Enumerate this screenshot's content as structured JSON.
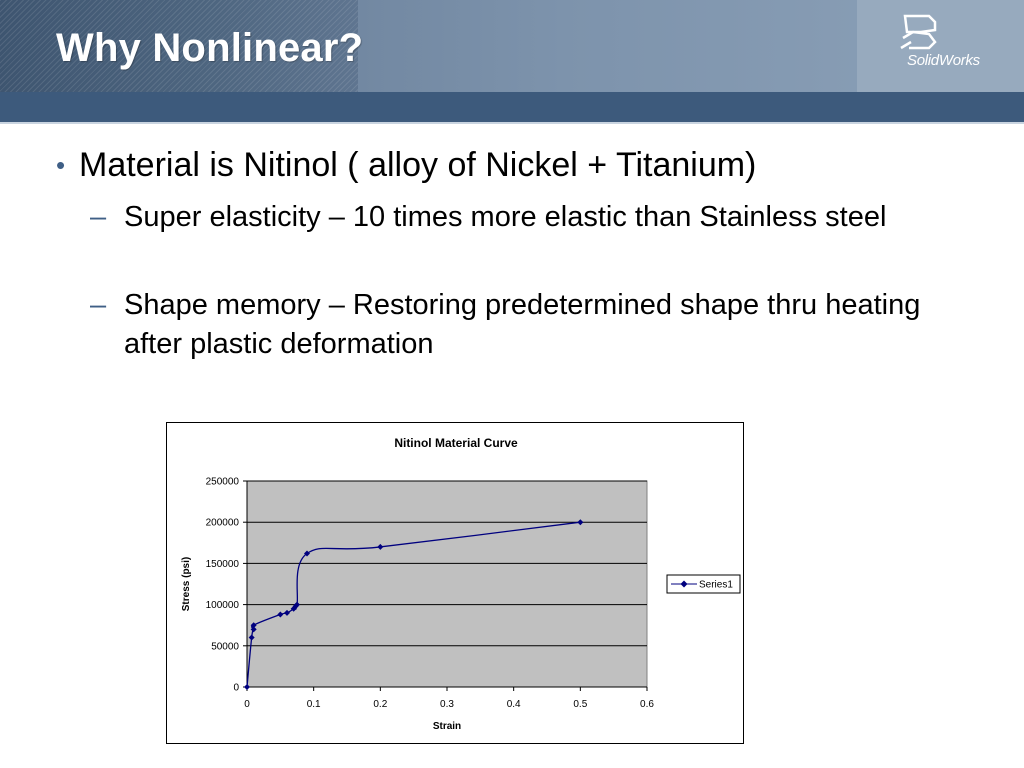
{
  "slide": {
    "title": "Why Nonlinear?",
    "logo": {
      "brand": "SolidWorks",
      "mark": "DS"
    }
  },
  "bullets": {
    "main": "Material is Nitinol ( alloy of Nickel + Titanium)",
    "sub": [
      "Super elasticity – 10 times more elastic than Stainless steel",
      "Shape memory – Restoring predetermined shape thru heating after plastic deformation"
    ]
  },
  "colors": {
    "header": "#5f7590",
    "stripe": "#3d5a7c",
    "bullet": "#3f5f86",
    "series": "#00007f",
    "plot_area": "#c0c0c0"
  },
  "chart_data": {
    "type": "scatter",
    "title": "Nitinol Material Curve",
    "xlabel": "Strain",
    "ylabel": "Stress (psi)",
    "xlim": [
      0,
      0.6
    ],
    "ylim": [
      0,
      250000
    ],
    "xticks": [
      "0",
      "0.1",
      "0.2",
      "0.3",
      "0.4",
      "0.5",
      "0.6"
    ],
    "yticks": [
      "0",
      "50000",
      "100000",
      "150000",
      "200000",
      "250000"
    ],
    "grid": "horizontal",
    "legend": "right",
    "series": [
      {
        "name": "Series1",
        "color": "#00007f",
        "marker": "diamond",
        "smooth": true,
        "x": [
          0,
          0.007,
          0.01,
          0.01,
          0.05,
          0.06,
          0.07,
          0.073,
          0.075,
          0.09,
          0.2,
          0.5
        ],
        "y": [
          0,
          60000,
          70000,
          75000,
          88000,
          90000,
          95000,
          98000,
          100000,
          162000,
          170000,
          200000
        ]
      }
    ]
  }
}
